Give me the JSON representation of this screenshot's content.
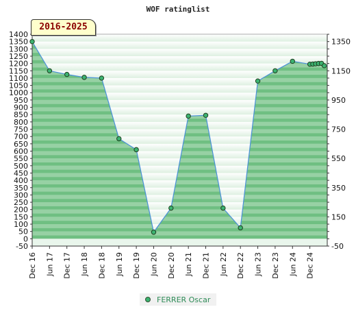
{
  "title": "WOF ratinglist",
  "badge": "2016-2025",
  "legend": {
    "label": "FERRER Oscar",
    "color": "#3cb371"
  },
  "chart_data": {
    "type": "area",
    "title": "WOF ratinglist",
    "xlabel": "",
    "ylabel": "",
    "grid": true,
    "legend_position": "bottom-center",
    "ylim": [
      -50,
      1400
    ],
    "y_tick_labels_left": [
      1400,
      1350,
      1300,
      1250,
      1200,
      1150,
      1100,
      1050,
      1000,
      950,
      900,
      850,
      800,
      750,
      700,
      650,
      600,
      550,
      500,
      450,
      400,
      350,
      300,
      250,
      200,
      150,
      100,
      50,
      0,
      -50
    ],
    "y_tick_labels_right": [
      1350,
      1150,
      950,
      750,
      550,
      350,
      150,
      -50
    ],
    "x_tick_labels": [
      "Dec 16",
      "Jun 17",
      "Dec 17",
      "Jun 18",
      "Dec 18",
      "Jun 19",
      "Dec 19",
      "Jun 20",
      "Dec 20",
      "Jun 21",
      "Dec 21",
      "Jun 22",
      "Dec 22",
      "Jun 23",
      "Dec 23",
      "Jun 24",
      "Dec 24"
    ],
    "series": [
      {
        "name": "FERRER Oscar",
        "color": "#3cb371",
        "points": [
          {
            "x": 0,
            "y": 1350
          },
          {
            "x": 1,
            "y": 1150
          },
          {
            "x": 2,
            "y": 1125
          },
          {
            "x": 3,
            "y": 1105
          },
          {
            "x": 4,
            "y": 1100
          },
          {
            "x": 5,
            "y": 685
          },
          {
            "x": 6,
            "y": 610
          },
          {
            "x": 7,
            "y": 45
          },
          {
            "x": 8,
            "y": 210
          },
          {
            "x": 9,
            "y": 840
          },
          {
            "x": 10,
            "y": 845
          },
          {
            "x": 11,
            "y": 210
          },
          {
            "x": 12,
            "y": 75
          },
          {
            "x": 13,
            "y": 1080
          },
          {
            "x": 14,
            "y": 1150
          },
          {
            "x": 15,
            "y": 1215
          },
          {
            "x": 16,
            "y": 1195
          },
          {
            "x": 16.17,
            "y": 1196
          },
          {
            "x": 16.33,
            "y": 1198
          },
          {
            "x": 16.5,
            "y": 1200
          },
          {
            "x": 16.67,
            "y": 1201
          },
          {
            "x": 16.83,
            "y": 1185
          }
        ]
      }
    ]
  }
}
